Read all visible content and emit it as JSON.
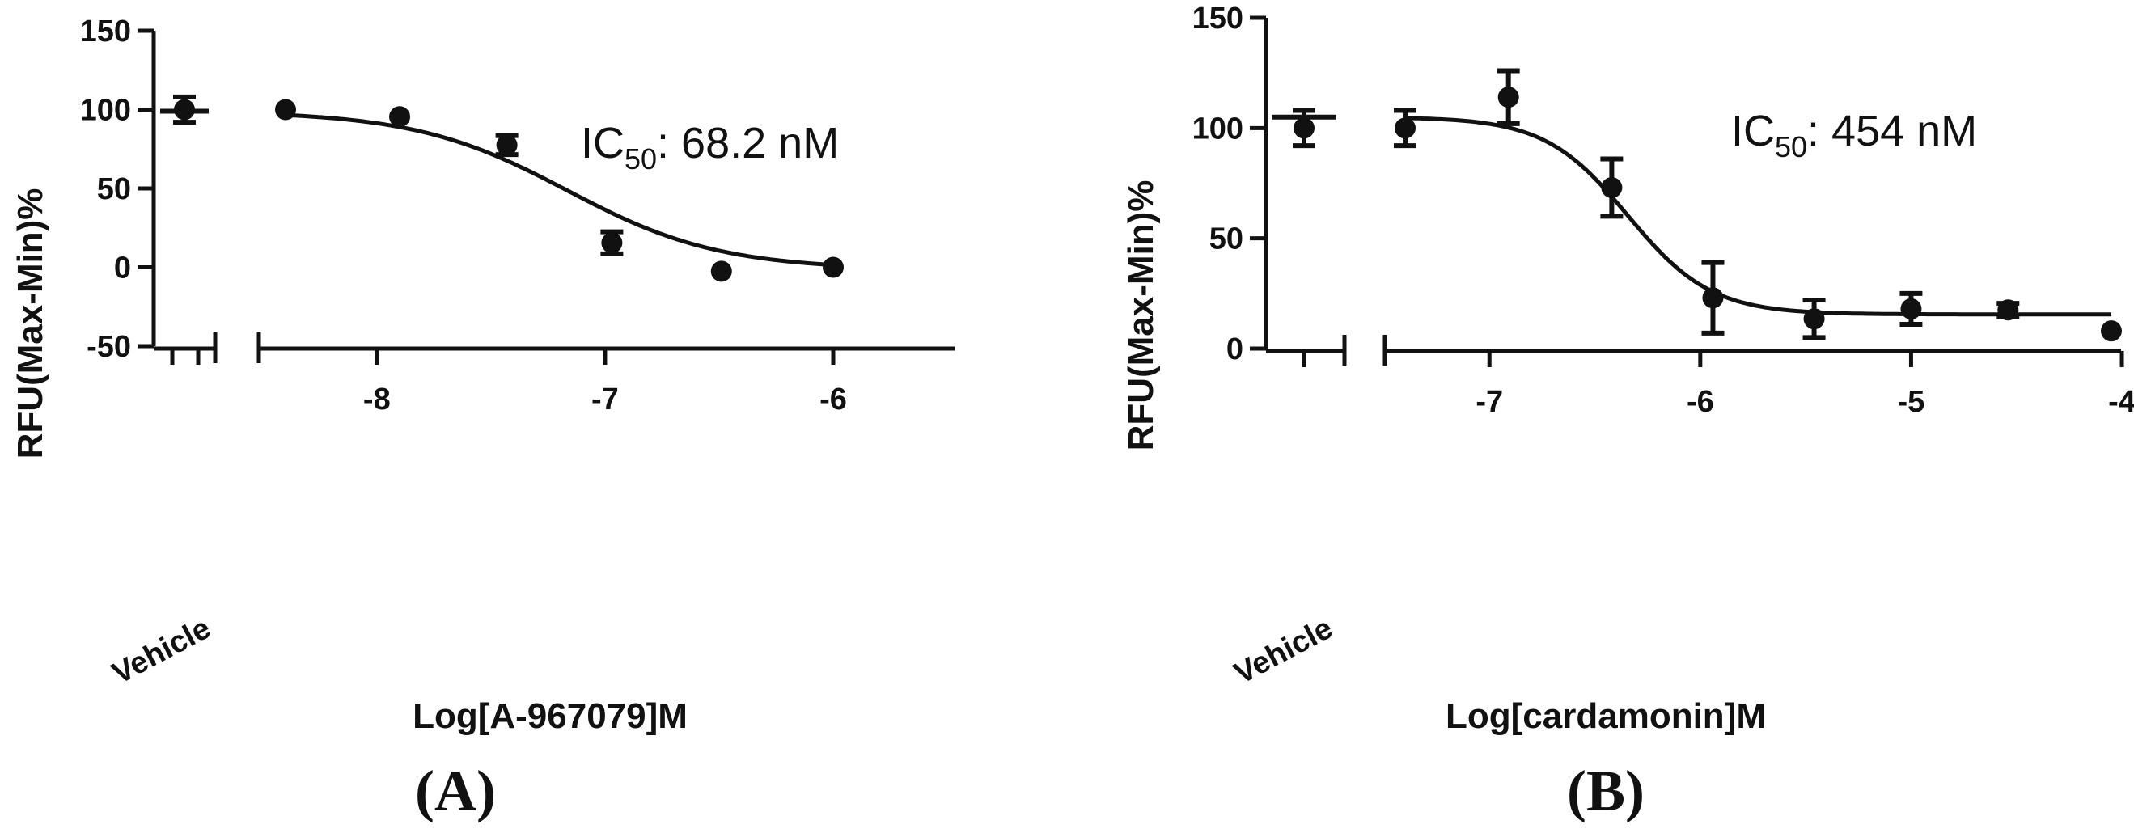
{
  "chart_data": [
    {
      "type": "scatter",
      "panel_label": "(A)",
      "xlabel": "Log[A-967079]M",
      "ylabel": "RFU(Max-Min)%",
      "ylim": [
        -50,
        150
      ],
      "yticks": [
        "150",
        "100",
        "50",
        "0",
        "-50"
      ],
      "xlim": [
        -8.4,
        -5.45
      ],
      "xticks": [
        "-8",
        "-7",
        "-6"
      ],
      "vehicle_label": "Vehicle",
      "annotation": {
        "prefix": "IC",
        "sub": "50",
        "suffix": ": 68.2 nM"
      },
      "vehicle": {
        "y": 100,
        "err": 8,
        "mean": 99
      },
      "points": [
        {
          "x": -8.4,
          "y": 100,
          "err": 0
        },
        {
          "x": -7.9,
          "y": 95.5,
          "err": 0
        },
        {
          "x": -7.43,
          "y": 77.5,
          "err": 6
        },
        {
          "x": -6.97,
          "y": 15.5,
          "err": 7
        },
        {
          "x": -6.49,
          "y": -2.5,
          "err": 0
        },
        {
          "x": -6.0,
          "y": 0,
          "err": 0
        }
      ],
      "fit": {
        "top": 99,
        "bottom": -1.5,
        "logIC50": -7.166,
        "hill": 1.3
      }
    },
    {
      "type": "scatter",
      "panel_label": "(B)",
      "xlabel": "Log[cardamonin]M",
      "ylabel": "RFU(Max-Min)%",
      "ylim": [
        0,
        150
      ],
      "yticks": [
        "150",
        "100",
        "50",
        "0"
      ],
      "xlim": [
        -7.55,
        -4.0
      ],
      "xticks": [
        "-7",
        "-6",
        "-5",
        "-4"
      ],
      "vehicle_label": "Vehicle",
      "annotation": {
        "prefix": "IC",
        "sub": "50",
        "suffix": ": 454 nM"
      },
      "vehicle": {
        "y": 100,
        "err": 8,
        "mean": 105
      },
      "points": [
        {
          "x": -7.4,
          "y": 100,
          "err": 8
        },
        {
          "x": -6.91,
          "y": 114,
          "err": 12
        },
        {
          "x": -6.42,
          "y": 73,
          "err": 13
        },
        {
          "x": -5.94,
          "y": 23,
          "err": 16
        },
        {
          "x": -5.46,
          "y": 13.5,
          "err": 8.5
        },
        {
          "x": -5.0,
          "y": 18,
          "err": 7
        },
        {
          "x": -4.54,
          "y": 17.5,
          "err": 3
        },
        {
          "x": -4.05,
          "y": 8,
          "err": 0
        }
      ],
      "fit": {
        "top": 105,
        "bottom": 15.5,
        "logIC50": -6.343,
        "hill": 2.2
      }
    }
  ]
}
